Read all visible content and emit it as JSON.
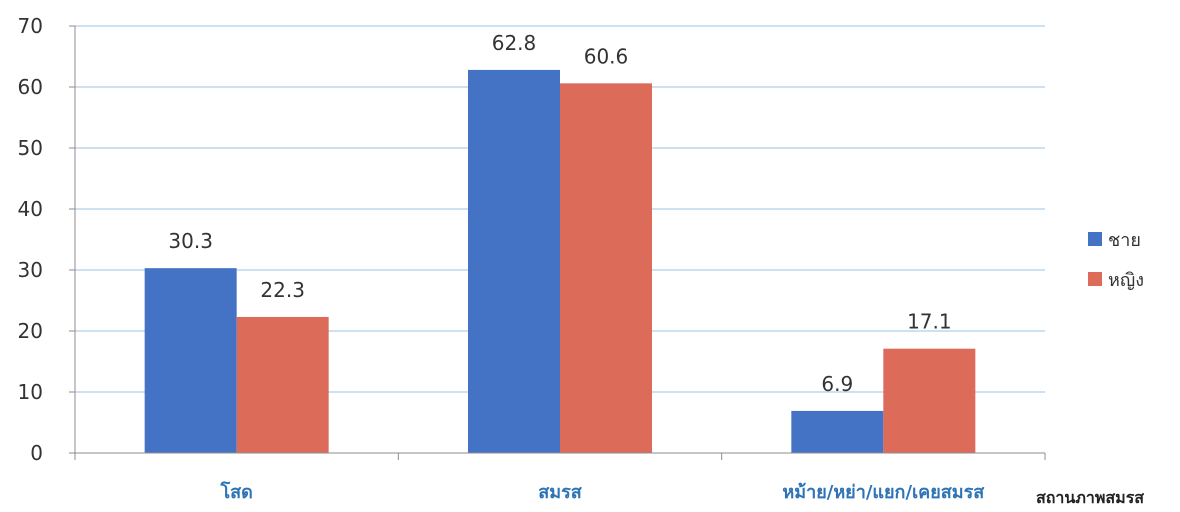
{
  "chart_data": {
    "type": "bar",
    "title": "",
    "xlabel": "สถานภาพสมรส",
    "ylabel": "",
    "ylim": [
      0,
      70
    ],
    "yticks": [
      0,
      10,
      20,
      30,
      40,
      50,
      60,
      70
    ],
    "grid": true,
    "legend_position": "right",
    "categories": [
      "โสด",
      "สมรส",
      "หม้าย/หย่า/แยก/เคยสมรส"
    ],
    "series": [
      {
        "name": "ชาย",
        "values": [
          30.3,
          62.8,
          6.9
        ],
        "color": "#4472c4"
      },
      {
        "name": "หญิง",
        "values": [
          22.3,
          60.6,
          17.1
        ],
        "color": "#dd6b5a"
      }
    ]
  }
}
